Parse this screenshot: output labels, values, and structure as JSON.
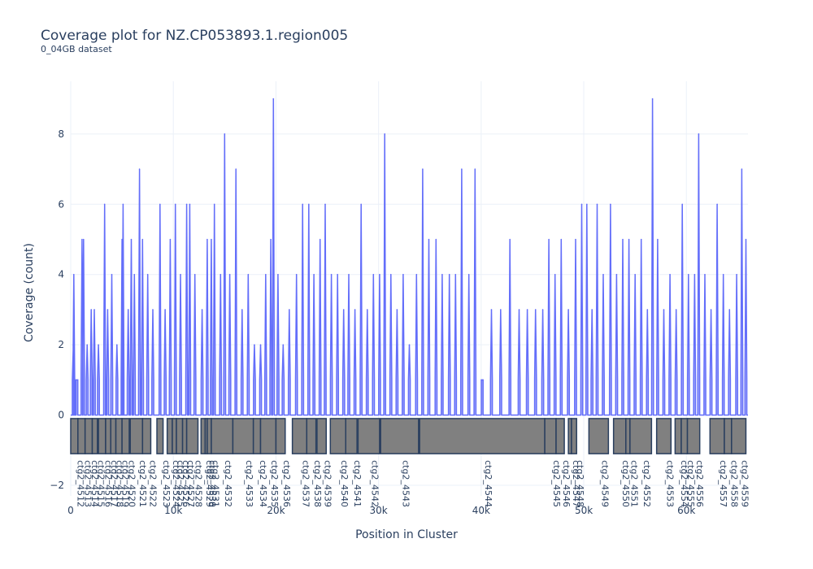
{
  "chart_data": {
    "type": "area",
    "title": "Coverage plot for NZ.CP053893.1.region005",
    "subtitle": "0_04GB dataset",
    "xlabel": "Position in Cluster",
    "ylabel": "Coverage (count)",
    "xlim": [
      0,
      66000
    ],
    "ylim": [
      -2.3,
      9.5
    ],
    "x_ticks": [
      0,
      10000,
      20000,
      30000,
      40000,
      50000,
      60000
    ],
    "x_tick_labels": [
      "0",
      "10k",
      "20k",
      "30k",
      "40k",
      "50k",
      "60k"
    ],
    "y_ticks": [
      -2,
      0,
      2,
      4,
      6,
      8
    ],
    "y_tick_labels": [
      "−2",
      "0",
      "2",
      "4",
      "6",
      "8"
    ],
    "grid": true,
    "line_color": "#636efa",
    "fill_color": "#aeb3f7",
    "gene_color": "#808080",
    "gene_border": "#2a3f5f",
    "coverage_peaks": [
      {
        "x": 250,
        "y": 2
      },
      {
        "x": 300,
        "y": 4
      },
      {
        "x": 600,
        "y": 1
      },
      {
        "x": 1100,
        "y": 5
      },
      {
        "x": 1250,
        "y": 5
      },
      {
        "x": 1600,
        "y": 2
      },
      {
        "x": 2000,
        "y": 3
      },
      {
        "x": 2300,
        "y": 3
      },
      {
        "x": 2700,
        "y": 2
      },
      {
        "x": 3300,
        "y": 6
      },
      {
        "x": 3600,
        "y": 3
      },
      {
        "x": 4000,
        "y": 4
      },
      {
        "x": 4500,
        "y": 2
      },
      {
        "x": 5000,
        "y": 5
      },
      {
        "x": 5100,
        "y": 6
      },
      {
        "x": 5600,
        "y": 3
      },
      {
        "x": 5900,
        "y": 5
      },
      {
        "x": 6200,
        "y": 4
      },
      {
        "x": 6700,
        "y": 7
      },
      {
        "x": 7000,
        "y": 5
      },
      {
        "x": 7500,
        "y": 4
      },
      {
        "x": 8000,
        "y": 3
      },
      {
        "x": 8700,
        "y": 6
      },
      {
        "x": 9200,
        "y": 3
      },
      {
        "x": 9700,
        "y": 5
      },
      {
        "x": 10200,
        "y": 6
      },
      {
        "x": 10700,
        "y": 4
      },
      {
        "x": 11300,
        "y": 6
      },
      {
        "x": 11600,
        "y": 6
      },
      {
        "x": 12100,
        "y": 4
      },
      {
        "x": 12800,
        "y": 3
      },
      {
        "x": 13300,
        "y": 5
      },
      {
        "x": 13700,
        "y": 5
      },
      {
        "x": 14000,
        "y": 6
      },
      {
        "x": 14600,
        "y": 4
      },
      {
        "x": 15000,
        "y": 8
      },
      {
        "x": 15500,
        "y": 4
      },
      {
        "x": 16100,
        "y": 7
      },
      {
        "x": 16700,
        "y": 3
      },
      {
        "x": 17300,
        "y": 4
      },
      {
        "x": 17900,
        "y": 2
      },
      {
        "x": 18500,
        "y": 2
      },
      {
        "x": 19000,
        "y": 4
      },
      {
        "x": 19500,
        "y": 5
      },
      {
        "x": 19750,
        "y": 9
      },
      {
        "x": 20200,
        "y": 4
      },
      {
        "x": 20700,
        "y": 2
      },
      {
        "x": 21300,
        "y": 3
      },
      {
        "x": 22000,
        "y": 4
      },
      {
        "x": 22600,
        "y": 6
      },
      {
        "x": 23200,
        "y": 6
      },
      {
        "x": 23700,
        "y": 4
      },
      {
        "x": 24300,
        "y": 5
      },
      {
        "x": 24800,
        "y": 6
      },
      {
        "x": 25400,
        "y": 4
      },
      {
        "x": 26000,
        "y": 4
      },
      {
        "x": 26600,
        "y": 3
      },
      {
        "x": 27100,
        "y": 4
      },
      {
        "x": 27700,
        "y": 3
      },
      {
        "x": 28300,
        "y": 6
      },
      {
        "x": 28900,
        "y": 3
      },
      {
        "x": 29500,
        "y": 4
      },
      {
        "x": 30100,
        "y": 4
      },
      {
        "x": 30600,
        "y": 8
      },
      {
        "x": 31200,
        "y": 4
      },
      {
        "x": 31800,
        "y": 3
      },
      {
        "x": 32400,
        "y": 4
      },
      {
        "x": 33000,
        "y": 2
      },
      {
        "x": 33700,
        "y": 4
      },
      {
        "x": 34300,
        "y": 7
      },
      {
        "x": 34900,
        "y": 5
      },
      {
        "x": 35600,
        "y": 5
      },
      {
        "x": 36200,
        "y": 4
      },
      {
        "x": 36900,
        "y": 4
      },
      {
        "x": 37500,
        "y": 4
      },
      {
        "x": 38100,
        "y": 7
      },
      {
        "x": 38800,
        "y": 4
      },
      {
        "x": 39400,
        "y": 7
      },
      {
        "x": 40100,
        "y": 1
      },
      {
        "x": 41000,
        "y": 3
      },
      {
        "x": 41900,
        "y": 3
      },
      {
        "x": 42800,
        "y": 5
      },
      {
        "x": 43700,
        "y": 3
      },
      {
        "x": 44500,
        "y": 3
      },
      {
        "x": 45300,
        "y": 3
      },
      {
        "x": 46000,
        "y": 3
      },
      {
        "x": 46600,
        "y": 5
      },
      {
        "x": 47200,
        "y": 4
      },
      {
        "x": 47800,
        "y": 5
      },
      {
        "x": 48500,
        "y": 3
      },
      {
        "x": 49200,
        "y": 5
      },
      {
        "x": 49800,
        "y": 6
      },
      {
        "x": 50300,
        "y": 6
      },
      {
        "x": 50800,
        "y": 3
      },
      {
        "x": 51300,
        "y": 6
      },
      {
        "x": 51900,
        "y": 4
      },
      {
        "x": 52600,
        "y": 6
      },
      {
        "x": 53200,
        "y": 4
      },
      {
        "x": 53800,
        "y": 5
      },
      {
        "x": 54400,
        "y": 5
      },
      {
        "x": 55000,
        "y": 4
      },
      {
        "x": 55600,
        "y": 5
      },
      {
        "x": 56200,
        "y": 3
      },
      {
        "x": 56700,
        "y": 9
      },
      {
        "x": 57200,
        "y": 5
      },
      {
        "x": 57800,
        "y": 3
      },
      {
        "x": 58400,
        "y": 4
      },
      {
        "x": 59000,
        "y": 3
      },
      {
        "x": 59600,
        "y": 6
      },
      {
        "x": 60200,
        "y": 4
      },
      {
        "x": 60800,
        "y": 4
      },
      {
        "x": 61200,
        "y": 8
      },
      {
        "x": 61800,
        "y": 4
      },
      {
        "x": 62400,
        "y": 3
      },
      {
        "x": 63000,
        "y": 6
      },
      {
        "x": 63600,
        "y": 4
      },
      {
        "x": 64200,
        "y": 3
      },
      {
        "x": 64900,
        "y": 4
      },
      {
        "x": 65400,
        "y": 7
      },
      {
        "x": 65800,
        "y": 5
      }
    ],
    "genes": [
      {
        "name": "ctg2_4512",
        "start": 0,
        "end": 700
      },
      {
        "name": "ctg2_4513",
        "start": 700,
        "end": 1400
      },
      {
        "name": "ctg2_4514",
        "start": 1400,
        "end": 2100
      },
      {
        "name": "ctg2_4515",
        "start": 2100,
        "end": 2600
      },
      {
        "name": "ctg2_4516",
        "start": 2700,
        "end": 3400
      },
      {
        "name": "ctg2_4517",
        "start": 3400,
        "end": 3900
      },
      {
        "name": "ctg2_4518",
        "start": 3900,
        "end": 4400
      },
      {
        "name": "ctg2_4519",
        "start": 4400,
        "end": 5000
      },
      {
        "name": "ctg2_4520",
        "start": 5000,
        "end": 5700
      },
      {
        "name": "ctg2_4521",
        "start": 5800,
        "end": 7000
      },
      {
        "name": "ctg2_4522",
        "start": 7000,
        "end": 7800
      },
      {
        "name": "ctg2_4523",
        "start": 8400,
        "end": 9000
      },
      {
        "name": "ctg2_4524",
        "start": 9400,
        "end": 9900
      },
      {
        "name": "ctg2_4525",
        "start": 9900,
        "end": 10300
      },
      {
        "name": "ctg2_4526",
        "start": 10300,
        "end": 10900
      },
      {
        "name": "ctg2_4527",
        "start": 10900,
        "end": 11300
      },
      {
        "name": "ctg2_4528",
        "start": 11300,
        "end": 12400
      },
      {
        "name": "ctg2_4529",
        "start": 12700,
        "end": 13100
      },
      {
        "name": "ctg2_4530",
        "start": 13100,
        "end": 13300
      },
      {
        "name": "ctg2_4531",
        "start": 13300,
        "end": 13700
      },
      {
        "name": "ctg2_4532",
        "start": 13700,
        "end": 15800
      },
      {
        "name": "ctg2_4533",
        "start": 15800,
        "end": 17800
      },
      {
        "name": "ctg2_4534",
        "start": 17800,
        "end": 18500
      },
      {
        "name": "ctg2_4535",
        "start": 18500,
        "end": 20000
      },
      {
        "name": "ctg2_4536",
        "start": 20000,
        "end": 20900
      },
      {
        "name": "ctg2_4537",
        "start": 21600,
        "end": 23000
      },
      {
        "name": "ctg2_4538",
        "start": 23000,
        "end": 23900
      },
      {
        "name": "ctg2_4539",
        "start": 24000,
        "end": 24900
      },
      {
        "name": "ctg2_4540",
        "start": 25300,
        "end": 26800
      },
      {
        "name": "ctg2_4541",
        "start": 26800,
        "end": 27900
      },
      {
        "name": "ctg2_4542",
        "start": 28000,
        "end": 30100
      },
      {
        "name": "ctg2_4543",
        "start": 30200,
        "end": 33900
      },
      {
        "name": "ctg2_4544",
        "start": 34000,
        "end": 46200
      },
      {
        "name": "ctg2_4545",
        "start": 46200,
        "end": 47300
      },
      {
        "name": "ctg2_4546",
        "start": 47300,
        "end": 48100
      },
      {
        "name": "ctg2_4547",
        "start": 48500,
        "end": 48800
      },
      {
        "name": "ctg2_4548",
        "start": 48800,
        "end": 49300
      },
      {
        "name": "ctg2_4549",
        "start": 50500,
        "end": 52400
      },
      {
        "name": "ctg2_4550",
        "start": 52900,
        "end": 54100
      },
      {
        "name": "ctg2_4551",
        "start": 54100,
        "end": 54500
      },
      {
        "name": "ctg2_4552",
        "start": 54500,
        "end": 56600
      },
      {
        "name": "ctg2_4553",
        "start": 57100,
        "end": 58500
      },
      {
        "name": "ctg2_4554",
        "start": 58900,
        "end": 59500
      },
      {
        "name": "ctg2_4555",
        "start": 59500,
        "end": 60100
      },
      {
        "name": "ctg2_4556",
        "start": 60100,
        "end": 61300
      },
      {
        "name": "ctg2_4557",
        "start": 62300,
        "end": 63700
      },
      {
        "name": "ctg2_4558",
        "start": 63700,
        "end": 64400
      },
      {
        "name": "ctg2_4559",
        "start": 64400,
        "end": 65800
      }
    ]
  }
}
